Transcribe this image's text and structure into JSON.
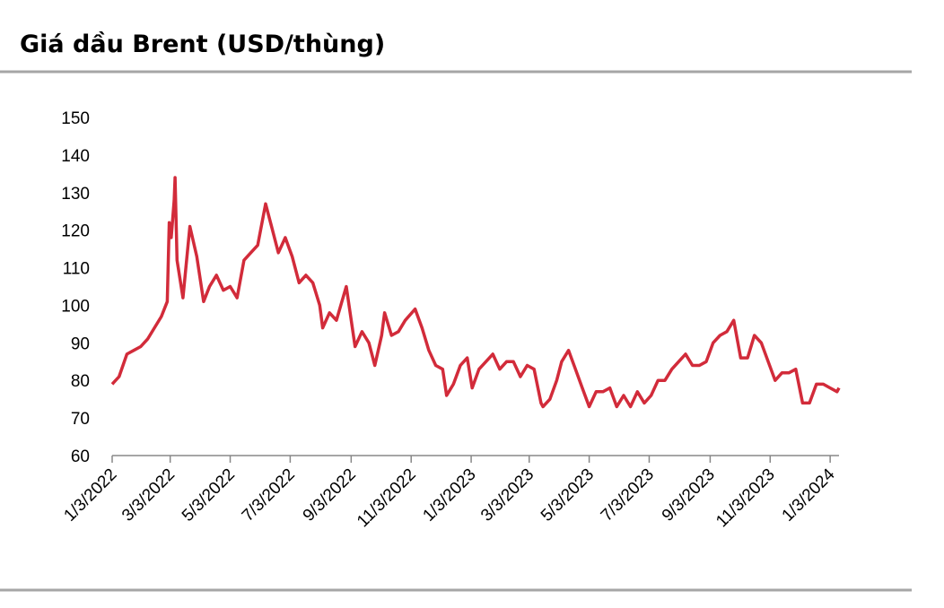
{
  "chart_data": {
    "type": "line",
    "title": "Giá dầu Brent (USD/thùng)",
    "x": [
      "1/3/2022",
      "1/10/2022",
      "1/18/2022",
      "1/25/2022",
      "2/1/2022",
      "2/8/2022",
      "2/15/2022",
      "2/22/2022",
      "2/28/2022",
      "3/2/2022",
      "3/4/2022",
      "3/7/2022",
      "3/8/2022",
      "3/10/2022",
      "3/16/2022",
      "3/23/2022",
      "3/30/2022",
      "4/6/2022",
      "4/12/2022",
      "4/19/2022",
      "4/26/2022",
      "5/3/2022",
      "5/10/2022",
      "5/17/2022",
      "5/24/2022",
      "5/31/2022",
      "6/8/2022",
      "6/14/2022",
      "6/21/2022",
      "6/28/2022",
      "7/5/2022",
      "7/12/2022",
      "7/19/2022",
      "7/26/2022",
      "8/2/2022",
      "8/5/2022",
      "8/12/2022",
      "8/19/2022",
      "8/29/2022",
      "9/7/2022",
      "9/14/2022",
      "9/21/2022",
      "9/27/2022",
      "10/4/2022",
      "10/7/2022",
      "10/14/2022",
      "10/21/2022",
      "10/28/2022",
      "11/7/2022",
      "11/14/2022",
      "11/21/2022",
      "11/28/2022",
      "12/5/2022",
      "12/9/2022",
      "12/16/2022",
      "12/23/2022",
      "12/30/2022",
      "1/4/2023",
      "1/11/2023",
      "1/18/2023",
      "1/25/2023",
      "2/1/2023",
      "2/8/2023",
      "2/15/2023",
      "2/22/2023",
      "3/1/2023",
      "3/8/2023",
      "3/15/2023",
      "3/17/2023",
      "3/24/2023",
      "3/31/2023",
      "4/5/2023",
      "4/12/2023",
      "4/19/2023",
      "4/26/2023",
      "5/3/2023",
      "5/10/2023",
      "5/17/2023",
      "5/24/2023",
      "5/31/2023",
      "6/7/2023",
      "6/14/2023",
      "6/21/2023",
      "6/28/2023",
      "7/5/2023",
      "7/12/2023",
      "7/19/2023",
      "7/26/2023",
      "8/2/2023",
      "8/9/2023",
      "8/16/2023",
      "8/23/2023",
      "8/30/2023",
      "9/6/2023",
      "9/13/2023",
      "9/20/2023",
      "9/27/2023",
      "10/4/2023",
      "10/11/2023",
      "10/18/2023",
      "10/25/2023",
      "11/1/2023",
      "11/8/2023",
      "11/15/2023",
      "11/22/2023",
      "11/29/2023",
      "12/6/2023",
      "12/13/2023",
      "12/20/2023",
      "12/27/2023",
      "1/3/2024",
      "1/10/2024",
      "1/12/2024"
    ],
    "series": [
      {
        "name": "Brent",
        "color": "#d22b3a",
        "values": [
          79,
          81,
          87,
          88,
          89,
          91,
          94,
          97,
          101,
          122,
          118,
          128,
          134,
          112,
          102,
          121,
          113,
          101,
          105,
          108,
          104,
          105,
          102,
          112,
          114,
          116,
          127,
          121,
          114,
          118,
          113,
          106,
          108,
          106,
          100,
          94,
          98,
          96,
          105,
          89,
          93,
          90,
          84,
          92,
          98,
          92,
          93,
          96,
          99,
          94,
          88,
          84,
          83,
          76,
          79,
          84,
          86,
          78,
          83,
          85,
          87,
          83,
          85,
          85,
          81,
          84,
          83,
          74,
          73,
          75,
          80,
          85,
          88,
          83,
          78,
          73,
          77,
          77,
          78,
          73,
          76,
          73,
          77,
          74,
          76,
          80,
          80,
          83,
          85,
          87,
          84,
          84,
          85,
          90,
          92,
          93,
          96,
          86,
          86,
          92,
          90,
          85,
          80,
          82,
          82,
          83,
          74,
          74,
          79,
          79,
          78,
          77,
          78
        ]
      }
    ],
    "xlim": [
      "1/3/2022",
      "1/12/2024"
    ],
    "xticks": [
      "1/3/2022",
      "3/3/2022",
      "5/3/2022",
      "7/3/2022",
      "9/3/2022",
      "11/3/2022",
      "1/3/2023",
      "3/3/2023",
      "5/3/2023",
      "7/3/2023",
      "9/3/2023",
      "11/3/2023",
      "1/3/2024"
    ],
    "ylim": [
      60,
      150
    ],
    "yticks": [
      60,
      70,
      80,
      90,
      100,
      110,
      120,
      130,
      140,
      150
    ],
    "grid": false
  }
}
